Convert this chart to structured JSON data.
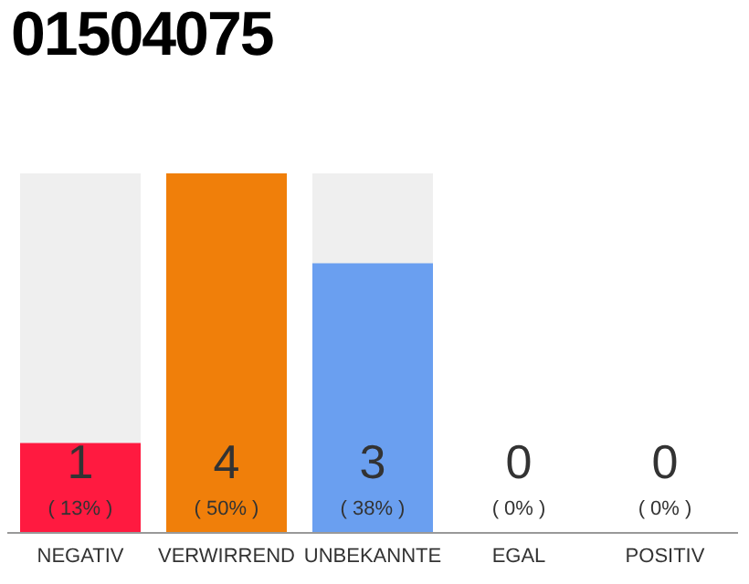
{
  "chart_data": {
    "type": "bar",
    "title": "01504075",
    "categories": [
      "NEGATIV",
      "VERWIRREND",
      "UNBEKANNTE",
      "EGAL",
      "POSITIV"
    ],
    "values": [
      1,
      4,
      3,
      0,
      0
    ],
    "colors": [
      "#ff1a40",
      "#f07f0a",
      "#6a9ff0",
      "#cccccc",
      "#cccccc"
    ],
    "data_labels": true,
    "annotations": [
      "( 13% )",
      "( 50% )",
      "( 38% )",
      "( 0% )",
      "( 0% )"
    ],
    "grid": false,
    "legend": false
  }
}
